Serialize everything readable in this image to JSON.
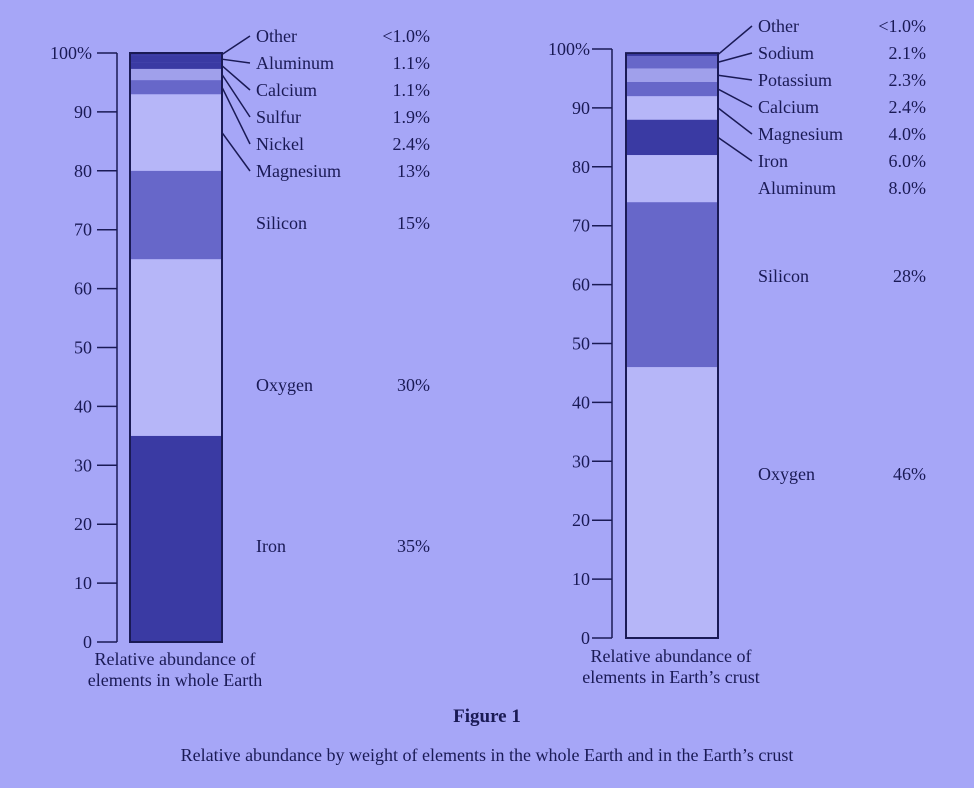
{
  "figure": {
    "title": "Figure 1",
    "caption": "Relative abundance by weight of elements in the whole Earth and in the Earth’s crust"
  },
  "colors": {
    "background": "#a6a6f7",
    "ink": "#1a1a55",
    "dark": "#3a3aa3",
    "mid": "#6767c9",
    "light": "#a0a0eb",
    "blank": "#b6b6f8"
  },
  "chart_data": [
    {
      "type": "bar",
      "stacked": true,
      "xlabel": [
        "Relative abundance of",
        "elements in whole Earth"
      ],
      "ylim": [
        0,
        100
      ],
      "y_ticks": [
        "0",
        "10",
        "20",
        "30",
        "40",
        "50",
        "60",
        "70",
        "80",
        "90",
        "100%"
      ],
      "segments": [
        {
          "name": "Iron",
          "label": "35%",
          "value": 35,
          "fill": "dark"
        },
        {
          "name": "Oxygen",
          "label": "30%",
          "value": 30,
          "fill": "blank"
        },
        {
          "name": "Silicon",
          "label": "15%",
          "value": 15,
          "fill": "mid"
        },
        {
          "name": "Magnesium",
          "label": "13%",
          "value": 13,
          "fill": "blank"
        },
        {
          "name": "Nickel",
          "label": "2.4%",
          "value": 2.4,
          "fill": "mid"
        },
        {
          "name": "Sulfur",
          "label": "1.9%",
          "value": 1.9,
          "fill": "light"
        },
        {
          "name": "Calcium",
          "label": "1.1%",
          "value": 1.1,
          "fill": "dark"
        },
        {
          "name": "Aluminum",
          "label": "1.1%",
          "value": 1.1,
          "fill": "dark"
        },
        {
          "name": "Other",
          "label": "<1.0%",
          "value": 0.5,
          "fill": "dark"
        }
      ]
    },
    {
      "type": "bar",
      "stacked": true,
      "xlabel": [
        "Relative abundance of",
        "elements in Earth’s crust"
      ],
      "ylim": [
        0,
        100
      ],
      "y_ticks": [
        "0",
        "10",
        "20",
        "30",
        "40",
        "50",
        "60",
        "70",
        "80",
        "90",
        "100%"
      ],
      "segments": [
        {
          "name": "Oxygen",
          "label": "46%",
          "value": 46,
          "fill": "blank"
        },
        {
          "name": "Silicon",
          "label": "28%",
          "value": 28,
          "fill": "mid"
        },
        {
          "name": "Aluminum",
          "label": "8.0%",
          "value": 8.0,
          "fill": "blank"
        },
        {
          "name": "Iron",
          "label": "6.0%",
          "value": 6.0,
          "fill": "dark"
        },
        {
          "name": "Magnesium",
          "label": "4.0%",
          "value": 4.0,
          "fill": "blank"
        },
        {
          "name": "Calcium",
          "label": "2.4%",
          "value": 2.4,
          "fill": "mid"
        },
        {
          "name": "Potassium",
          "label": "2.3%",
          "value": 2.3,
          "fill": "light"
        },
        {
          "name": "Sodium",
          "label": "2.1%",
          "value": 2.1,
          "fill": "mid"
        },
        {
          "name": "Other",
          "label": "<1.0%",
          "value": 0.5,
          "fill": "dark"
        }
      ]
    }
  ]
}
